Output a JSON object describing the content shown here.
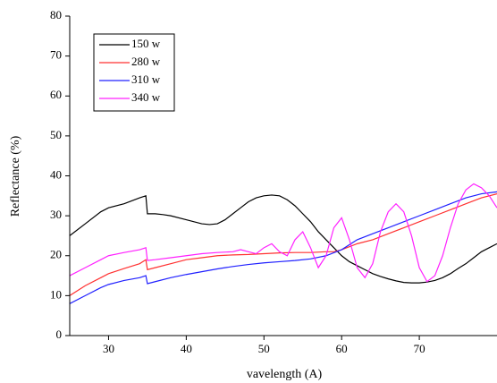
{
  "chart_data": {
    "type": "line",
    "xlabel": "vavelength (A)",
    "ylabel": "Reflectance (%)",
    "xlim": [
      25,
      80
    ],
    "ylim": [
      0,
      80
    ],
    "xticks": [
      30,
      40,
      50,
      60,
      70
    ],
    "yticks": [
      0,
      10,
      20,
      30,
      40,
      50,
      60,
      70,
      80
    ],
    "legend": "upper left",
    "series": [
      {
        "name": "150 w",
        "color": "#000000",
        "x": [
          25,
          27,
          29,
          30,
          32,
          34,
          34.8,
          35,
          36,
          37,
          38,
          40,
          42,
          43,
          44,
          45,
          46,
          47,
          48,
          49,
          50,
          51,
          52,
          53,
          54,
          55,
          56,
          57,
          58,
          59,
          60,
          61,
          62,
          63,
          64,
          65,
          66,
          67,
          68,
          69,
          70,
          71,
          72,
          73,
          74,
          75,
          76,
          77,
          78,
          79,
          80
        ],
        "values": [
          25,
          28,
          31,
          32,
          33,
          34.5,
          35,
          30.5,
          30.5,
          30.3,
          30,
          29,
          28,
          27.8,
          28,
          29,
          30.5,
          32,
          33.5,
          34.5,
          35,
          35.2,
          35,
          34,
          32.5,
          30.5,
          28.5,
          26,
          24,
          22,
          20,
          18.5,
          17.5,
          16.5,
          15.5,
          14.8,
          14.2,
          13.7,
          13.3,
          13.2,
          13.2,
          13.4,
          13.8,
          14.5,
          15.5,
          16.8,
          18,
          19.5,
          21,
          22,
          23
        ]
      },
      {
        "name": "280 w",
        "color": "#ff3030",
        "x": [
          25,
          27,
          29,
          30,
          32,
          34,
          34.8,
          35,
          36,
          38,
          40,
          42,
          44,
          46,
          48,
          50,
          52,
          54,
          56,
          58,
          59,
          60,
          62,
          64,
          66,
          68,
          70,
          72,
          74,
          76,
          78,
          80
        ],
        "values": [
          10,
          12.5,
          14.5,
          15.5,
          16.8,
          18,
          19,
          16.5,
          17,
          18,
          19,
          19.5,
          20,
          20.2,
          20.3,
          20.5,
          20.7,
          20.8,
          20.8,
          21,
          21,
          21.5,
          23,
          24,
          25.5,
          27,
          28.5,
          30,
          31.5,
          33,
          34.5,
          35.5
        ]
      },
      {
        "name": "310 w",
        "color": "#2020ff",
        "x": [
          25,
          27,
          29,
          30,
          32,
          34,
          34.8,
          35,
          36,
          38,
          40,
          42,
          44,
          46,
          48,
          50,
          52,
          54,
          56,
          58,
          60,
          62,
          64,
          66,
          68,
          70,
          72,
          74,
          76,
          78,
          80
        ],
        "values": [
          8,
          10,
          12,
          12.8,
          13.8,
          14.5,
          15,
          13,
          13.5,
          14.5,
          15.3,
          16,
          16.7,
          17.3,
          17.8,
          18.2,
          18.5,
          18.8,
          19.2,
          20,
          21.5,
          24,
          25.5,
          27,
          28.5,
          30,
          31.5,
          33,
          34.5,
          35.5,
          36
        ]
      },
      {
        "name": "340 w",
        "color": "#ff20ff",
        "x": [
          25,
          27,
          29,
          30,
          32,
          34,
          34.8,
          35,
          36,
          38,
          40,
          42,
          44,
          46,
          47,
          48,
          49,
          50,
          51,
          52,
          53,
          54,
          55,
          56,
          57,
          58,
          59,
          60,
          61,
          62,
          63,
          64,
          65,
          66,
          67,
          68,
          69,
          70,
          71,
          72,
          73,
          74,
          75,
          76,
          77,
          78,
          79,
          80
        ],
        "values": [
          15,
          17,
          19,
          20,
          20.8,
          21.5,
          22,
          18.8,
          19,
          19.5,
          20,
          20.5,
          20.8,
          21,
          21.5,
          21,
          20.5,
          22,
          23,
          21,
          20,
          24,
          26,
          22,
          17,
          20,
          27,
          29.5,
          24,
          17,
          14.5,
          18,
          26,
          31,
          33,
          31,
          25,
          17,
          13.5,
          15,
          20,
          27,
          33,
          36.5,
          38,
          37,
          35,
          32
        ]
      }
    ]
  }
}
